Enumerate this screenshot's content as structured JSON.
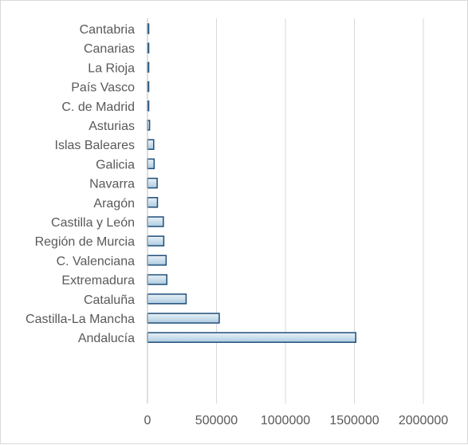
{
  "chart_data": {
    "type": "bar",
    "orientation": "horizontal",
    "title": "",
    "xlabel": "",
    "ylabel": "",
    "categories": [
      "Cantabria",
      "Canarias",
      "La Rioja",
      "País Vasco",
      "C. de Madrid",
      "Asturias",
      "Islas Baleares",
      "Galicia",
      "Navarra",
      "Aragón",
      "Castilla y León",
      "Región de Murcia",
      "C. Valenciana",
      "Extremadura",
      "Cataluña",
      "Castilla-La Mancha",
      "Andalucía"
    ],
    "values": [
      3000,
      4000,
      5000,
      6000,
      8000,
      15000,
      45000,
      48000,
      70000,
      72000,
      115000,
      118000,
      135000,
      140000,
      280000,
      520000,
      1510000
    ],
    "xlim": [
      0,
      2000000
    ],
    "xticks": [
      0,
      500000,
      1000000,
      1500000,
      2000000
    ],
    "xtick_labels": [
      "0",
      "500000",
      "1000000",
      "1500000",
      "2000000"
    ],
    "grid": "vertical",
    "legend": "none",
    "colors": {
      "bar_fill_light": "#eaf2f8",
      "bar_fill_dark": "#aecbe0",
      "bar_stroke": "#1f4e79",
      "gridline": "#d9d9d9",
      "axis_line": "#bfbfbf",
      "label_text": "#595959"
    }
  }
}
